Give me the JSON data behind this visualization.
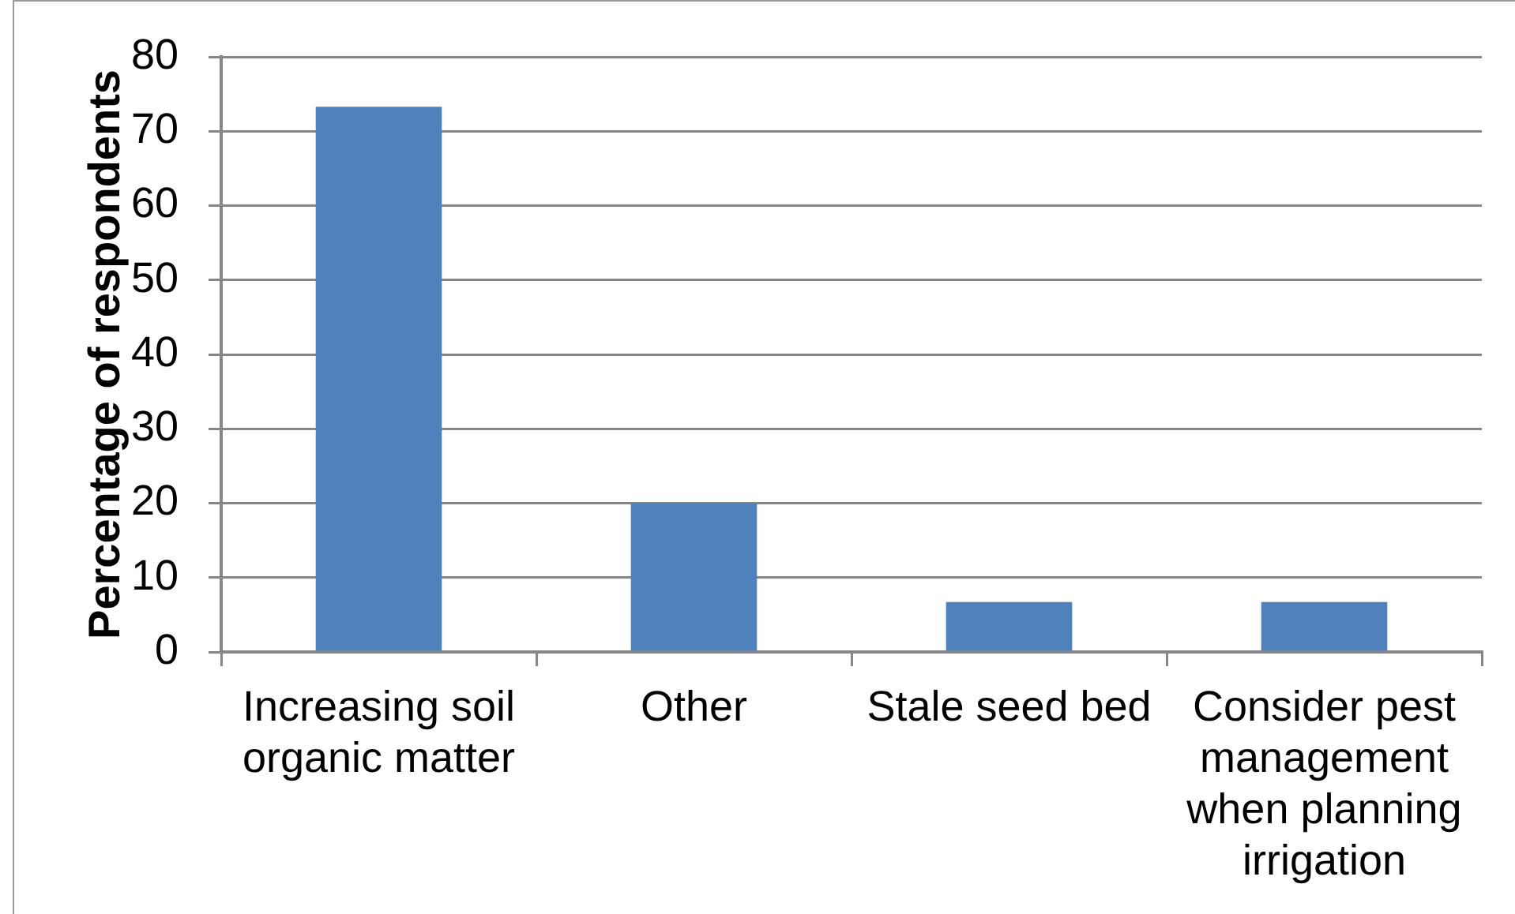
{
  "chart_data": {
    "type": "bar",
    "ylabel": "Percentage of respondents",
    "categories": [
      "Increasing soil organic matter",
      "Other",
      "Stale seed bed",
      "Consider pest management when planning irrigation"
    ],
    "values": [
      73.3,
      20,
      6.7,
      6.7
    ],
    "color": "#4f81bd",
    "ylim": [
      0,
      80
    ],
    "yticks": [
      0,
      10,
      20,
      30,
      40,
      50,
      60,
      70,
      80
    ],
    "grid": "y"
  }
}
